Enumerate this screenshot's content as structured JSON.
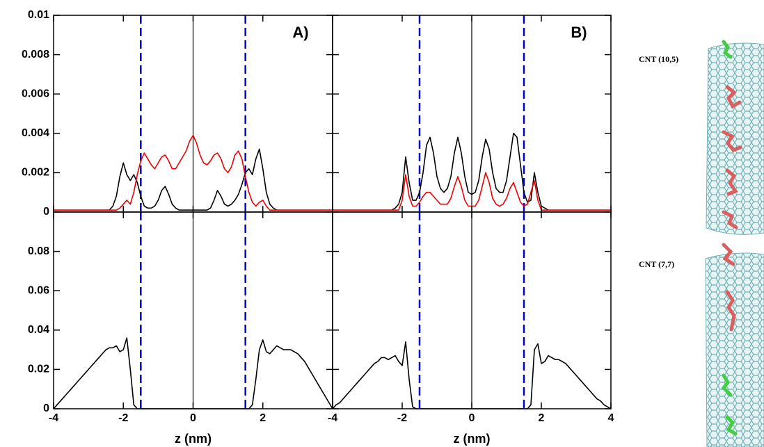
{
  "chart_data": [
    {
      "type": "line",
      "label": "A)",
      "xlim": [
        -4,
        4
      ],
      "ylim": [
        0,
        0.01
      ],
      "yticks": [
        0,
        0.002,
        0.004,
        0.006,
        0.008,
        0.01
      ],
      "vlines": [
        {
          "x": -1.5,
          "color": "#0000cc",
          "style": "dashed"
        },
        {
          "x": 0,
          "color": "#000000",
          "style": "solid"
        },
        {
          "x": 1.5,
          "color": "#0000cc",
          "style": "dashed"
        }
      ],
      "x": [
        -4,
        -3.9,
        -3.8,
        -3.7,
        -3.6,
        -3.5,
        -3.4,
        -3.3,
        -3.2,
        -3.1,
        -3,
        -2.9,
        -2.8,
        -2.7,
        -2.6,
        -2.5,
        -2.4,
        -2.3,
        -2.2,
        -2.1,
        -2,
        -1.9,
        -1.8,
        -1.7,
        -1.6,
        -1.5,
        -1.4,
        -1.3,
        -1.2,
        -1.1,
        -1,
        -0.9,
        -0.8,
        -0.7,
        -0.6,
        -0.5,
        -0.4,
        -0.3,
        -0.2,
        -0.1,
        0,
        0.1,
        0.2,
        0.3,
        0.4,
        0.5,
        0.6,
        0.7,
        0.8,
        0.9,
        1,
        1.1,
        1.2,
        1.3,
        1.4,
        1.5,
        1.6,
        1.7,
        1.8,
        1.9,
        2,
        2.1,
        2.2,
        2.3,
        2.4,
        2.5,
        2.6,
        2.7,
        2.8,
        2.9,
        3,
        3.1,
        3.2,
        3.3,
        3.4,
        3.5,
        3.6,
        3.7,
        3.8,
        3.9,
        4
      ],
      "series": [
        {
          "color": "#000000",
          "values": [
            0.0001,
            0.0001,
            0.0001,
            0.0001,
            0.0001,
            0.0001,
            0.0001,
            0.0001,
            0.0001,
            0.0001,
            0.0001,
            0.0001,
            0.0001,
            0.0001,
            0.0001,
            0.0001,
            0.0001,
            0.0003,
            0.0008,
            0.0018,
            0.0025,
            0.0019,
            0.0016,
            0.0019,
            0.0015,
            0.0008,
            0.0003,
            0.0002,
            0.0002,
            0.0003,
            0.0006,
            0.0011,
            0.0013,
            0.0009,
            0.0004,
            0.0002,
            0.0001,
            0.0001,
            0.0001,
            0.0001,
            0.0001,
            0.0001,
            0.0001,
            0.0001,
            0.0001,
            0.0002,
            0.0006,
            0.0011,
            0.0008,
            0.0004,
            0.0003,
            0.0004,
            0.0006,
            0.0009,
            0.0014,
            0.002,
            0.0022,
            0.0019,
            0.0027,
            0.0032,
            0.0022,
            0.001,
            0.0004,
            0.0002,
            0.0001,
            0.0001,
            0.0001,
            0.0001,
            0.0001,
            0.0001,
            0.0001,
            0.0001,
            0.0001,
            0.0001,
            0.0001,
            0.0001,
            0.0001,
            0.0001,
            0.0001,
            0.0001,
            0.0001
          ]
        },
        {
          "color": "#ee0000",
          "values": [
            0.0001,
            0.0001,
            0.0001,
            0.0001,
            0.0001,
            0.0001,
            0.0001,
            0.0001,
            0.0001,
            0.0001,
            0.0001,
            0.0001,
            0.0001,
            0.0001,
            0.0001,
            0.0001,
            0.0001,
            0.0001,
            0.0001,
            0.0002,
            0.0004,
            0.0006,
            0.0004,
            0.001,
            0.0019,
            0.0026,
            0.003,
            0.0027,
            0.0024,
            0.0022,
            0.0025,
            0.0028,
            0.0029,
            0.0026,
            0.0022,
            0.0022,
            0.0025,
            0.0028,
            0.0031,
            0.0036,
            0.0039,
            0.0035,
            0.0029,
            0.0025,
            0.0024,
            0.0026,
            0.0029,
            0.003,
            0.0027,
            0.0022,
            0.002,
            0.0023,
            0.0029,
            0.0031,
            0.0027,
            0.0018,
            0.001,
            0.0005,
            0.0003,
            0.0005,
            0.0006,
            0.0003,
            0.0001,
            0.0001,
            0.0001,
            0.0001,
            0.0001,
            0.0001,
            0.0001,
            0.0001,
            0.0001,
            0.0001,
            0.0001,
            0.0001,
            0.0001,
            0.0001,
            0.0001,
            0.0001,
            0.0001,
            0.0001,
            0.0001
          ]
        }
      ]
    },
    {
      "type": "line",
      "label": "B)",
      "xlim": [
        -4,
        4
      ],
      "ylim": [
        0,
        0.01
      ],
      "vlines": [
        {
          "x": -1.5,
          "color": "#0000cc",
          "style": "dashed"
        },
        {
          "x": 0,
          "color": "#000000",
          "style": "solid"
        },
        {
          "x": 1.5,
          "color": "#0000cc",
          "style": "dashed"
        }
      ],
      "x": [
        -4,
        -3.9,
        -3.8,
        -3.7,
        -3.6,
        -3.5,
        -3.4,
        -3.3,
        -3.2,
        -3.1,
        -3,
        -2.9,
        -2.8,
        -2.7,
        -2.6,
        -2.5,
        -2.4,
        -2.3,
        -2.2,
        -2.1,
        -2,
        -1.9,
        -1.8,
        -1.7,
        -1.6,
        -1.5,
        -1.4,
        -1.3,
        -1.2,
        -1.1,
        -1,
        -0.9,
        -0.8,
        -0.7,
        -0.6,
        -0.5,
        -0.4,
        -0.3,
        -0.2,
        -0.1,
        0,
        0.1,
        0.2,
        0.3,
        0.4,
        0.5,
        0.6,
        0.7,
        0.8,
        0.9,
        1,
        1.1,
        1.2,
        1.3,
        1.4,
        1.5,
        1.6,
        1.7,
        1.8,
        1.9,
        2,
        2.1,
        2.2,
        2.3,
        2.4,
        2.5,
        2.6,
        2.7,
        2.8,
        2.9,
        3,
        3.1,
        3.2,
        3.3,
        3.4,
        3.5,
        3.6,
        3.7,
        3.8,
        3.9,
        4
      ],
      "series": [
        {
          "color": "#000000",
          "values": [
            0.0001,
            0.0001,
            0.0001,
            0.0001,
            0.0001,
            0.0001,
            0.0001,
            0.0001,
            0.0001,
            0.0001,
            0.0001,
            0.0001,
            0.0001,
            0.0001,
            0.0001,
            0.0001,
            0.0001,
            0.0001,
            0.0002,
            0.0004,
            0.001,
            0.0028,
            0.0015,
            0.0006,
            0.0006,
            0.001,
            0.002,
            0.0034,
            0.0038,
            0.003,
            0.0018,
            0.0012,
            0.001,
            0.0012,
            0.0018,
            0.003,
            0.0038,
            0.003,
            0.0018,
            0.001,
            0.0009,
            0.001,
            0.0016,
            0.0028,
            0.0037,
            0.0032,
            0.002,
            0.0012,
            0.001,
            0.001,
            0.0016,
            0.0028,
            0.004,
            0.0038,
            0.0024,
            0.001,
            0.0005,
            0.0006,
            0.002,
            0.001,
            0.0003,
            0.0002,
            0.0001,
            0.0001,
            0.0001,
            0.0001,
            0.0001,
            0.0001,
            0.0001,
            0.0001,
            0.0001,
            0.0001,
            0.0001,
            0.0001,
            0.0001,
            0.0001,
            0.0001,
            0.0001,
            0.0001,
            0.0001,
            0.0001
          ]
        },
        {
          "color": "#ee0000",
          "values": [
            0.0001,
            0.0001,
            0.0001,
            0.0001,
            0.0001,
            0.0001,
            0.0001,
            0.0001,
            0.0001,
            0.0001,
            0.0001,
            0.0001,
            0.0001,
            0.0001,
            0.0001,
            0.0001,
            0.0001,
            0.0001,
            0.0001,
            0.0001,
            0.0006,
            0.0019,
            0.0008,
            0.0003,
            0.0003,
            0.0005,
            0.0008,
            0.001,
            0.001,
            0.0008,
            0.0006,
            0.0004,
            0.0004,
            0.0004,
            0.0007,
            0.0013,
            0.0018,
            0.0013,
            0.0006,
            0.0003,
            0.0003,
            0.0003,
            0.0006,
            0.0013,
            0.002,
            0.0015,
            0.0007,
            0.0004,
            0.0003,
            0.0004,
            0.0007,
            0.0012,
            0.0015,
            0.001,
            0.0005,
            0.0003,
            0.0004,
            0.001,
            0.0016,
            0.0006,
            0.0001,
            0.0001,
            0.0001,
            0.0001,
            0.0001,
            0.0001,
            0.0001,
            0.0001,
            0.0001,
            0.0001,
            0.0001,
            0.0001,
            0.0001,
            0.0001,
            0.0001,
            0.0001,
            0.0001,
            0.0001,
            0.0001,
            0.0001,
            0.0001
          ]
        }
      ]
    },
    {
      "type": "line",
      "xlabel": "z (nm)",
      "xlim": [
        -4,
        4
      ],
      "xticks": [
        -4,
        -2,
        0,
        2
      ],
      "ylim": [
        0,
        0.1
      ],
      "yticks": [
        0,
        0.02,
        0.04,
        0.06,
        0.08
      ],
      "vlines": [
        {
          "x": -1.5,
          "color": "#0000cc",
          "style": "dashed"
        },
        {
          "x": 0,
          "color": "#000000",
          "style": "solid"
        },
        {
          "x": 1.5,
          "color": "#0000cc",
          "style": "dashed"
        }
      ],
      "x": [
        -4,
        -3.9,
        -3.8,
        -3.7,
        -3.6,
        -3.5,
        -3.4,
        -3.3,
        -3.2,
        -3.1,
        -3,
        -2.9,
        -2.8,
        -2.7,
        -2.6,
        -2.5,
        -2.4,
        -2.3,
        -2.2,
        -2.1,
        -2,
        -1.9,
        -1.8,
        -1.7,
        -1.6,
        -1.5,
        -1.4,
        -1.3,
        -1.2,
        -1.1,
        -1,
        -0.9,
        -0.8,
        -0.7,
        -0.6,
        -0.5,
        -0.4,
        -0.3,
        -0.2,
        -0.1,
        0,
        0.1,
        0.2,
        0.3,
        0.4,
        0.5,
        0.6,
        0.7,
        0.8,
        0.9,
        1,
        1.1,
        1.2,
        1.3,
        1.4,
        1.5,
        1.6,
        1.7,
        1.8,
        1.9,
        2,
        2.1,
        2.2,
        2.3,
        2.4,
        2.5,
        2.6,
        2.7,
        2.8,
        2.9,
        3,
        3.1,
        3.2,
        3.3,
        3.4,
        3.5,
        3.6,
        3.7,
        3.8,
        3.9,
        4
      ],
      "series": [
        {
          "color": "#000000",
          "values": [
            0,
            0.002,
            0.004,
            0.006,
            0.008,
            0.01,
            0.012,
            0.014,
            0.016,
            0.018,
            0.02,
            0.022,
            0.024,
            0.026,
            0.028,
            0.03,
            0.031,
            0.031,
            0.032,
            0.029,
            0.03,
            0.036,
            0.02,
            0.002,
            0,
            0,
            0,
            0,
            0,
            0,
            0,
            0,
            0,
            0,
            0,
            0,
            0,
            0,
            0,
            0,
            0,
            0,
            0,
            0,
            0,
            0,
            0,
            0,
            0,
            0,
            0,
            0,
            0,
            0,
            0,
            0,
            0,
            0.002,
            0.015,
            0.03,
            0.035,
            0.029,
            0.028,
            0.03,
            0.032,
            0.031,
            0.03,
            0.03,
            0.03,
            0.029,
            0.028,
            0.026,
            0.024,
            0.021,
            0.018,
            0.015,
            0.012,
            0.009,
            0.006,
            0.003,
            0
          ]
        }
      ]
    },
    {
      "type": "line",
      "xlabel": "z (nm)",
      "xlim": [
        -4,
        4
      ],
      "xticks": [
        -4,
        -2,
        0,
        2,
        4
      ],
      "ylim": [
        0,
        0.1
      ],
      "vlines": [
        {
          "x": -1.5,
          "color": "#0000cc",
          "style": "dashed"
        },
        {
          "x": 0,
          "color": "#000000",
          "style": "solid"
        },
        {
          "x": 1.5,
          "color": "#0000cc",
          "style": "dashed"
        }
      ],
      "x": [
        -4,
        -3.9,
        -3.8,
        -3.7,
        -3.6,
        -3.5,
        -3.4,
        -3.3,
        -3.2,
        -3.1,
        -3,
        -2.9,
        -2.8,
        -2.7,
        -2.6,
        -2.5,
        -2.4,
        -2.3,
        -2.2,
        -2.1,
        -2,
        -1.9,
        -1.8,
        -1.7,
        -1.6,
        -1.5,
        -1.4,
        -1.3,
        -1.2,
        -1.1,
        -1,
        -0.9,
        -0.8,
        -0.7,
        -0.6,
        -0.5,
        -0.4,
        -0.3,
        -0.2,
        -0.1,
        0,
        0.1,
        0.2,
        0.3,
        0.4,
        0.5,
        0.6,
        0.7,
        0.8,
        0.9,
        1,
        1.1,
        1.2,
        1.3,
        1.4,
        1.5,
        1.6,
        1.7,
        1.8,
        1.9,
        2,
        2.1,
        2.2,
        2.3,
        2.4,
        2.5,
        2.6,
        2.7,
        2.8,
        2.9,
        3,
        3.1,
        3.2,
        3.3,
        3.4,
        3.5,
        3.6,
        3.7,
        3.8,
        3.9,
        4
      ],
      "series": [
        {
          "color": "#000000",
          "values": [
            0,
            0.002,
            0.003,
            0.005,
            0.007,
            0.009,
            0.011,
            0.013,
            0.015,
            0.017,
            0.019,
            0.021,
            0.023,
            0.024,
            0.026,
            0.026,
            0.025,
            0.026,
            0.027,
            0.024,
            0.022,
            0.034,
            0.015,
            0.001,
            0,
            0,
            0,
            0,
            0,
            0,
            0,
            0,
            0,
            0,
            0,
            0,
            0,
            0,
            0,
            0,
            0,
            0,
            0,
            0,
            0,
            0,
            0,
            0,
            0,
            0,
            0,
            0,
            0,
            0,
            0,
            0,
            0,
            0.002,
            0.03,
            0.033,
            0.023,
            0.024,
            0.027,
            0.026,
            0.025,
            0.025,
            0.024,
            0.023,
            0.021,
            0.019,
            0.017,
            0.015,
            0.013,
            0.011,
            0.009,
            0.007,
            0.005,
            0.004,
            0.002,
            0.001,
            0
          ]
        }
      ]
    }
  ],
  "images": [
    {
      "label": "CNT (10,5)"
    },
    {
      "label": "CNT (7,7)"
    }
  ]
}
